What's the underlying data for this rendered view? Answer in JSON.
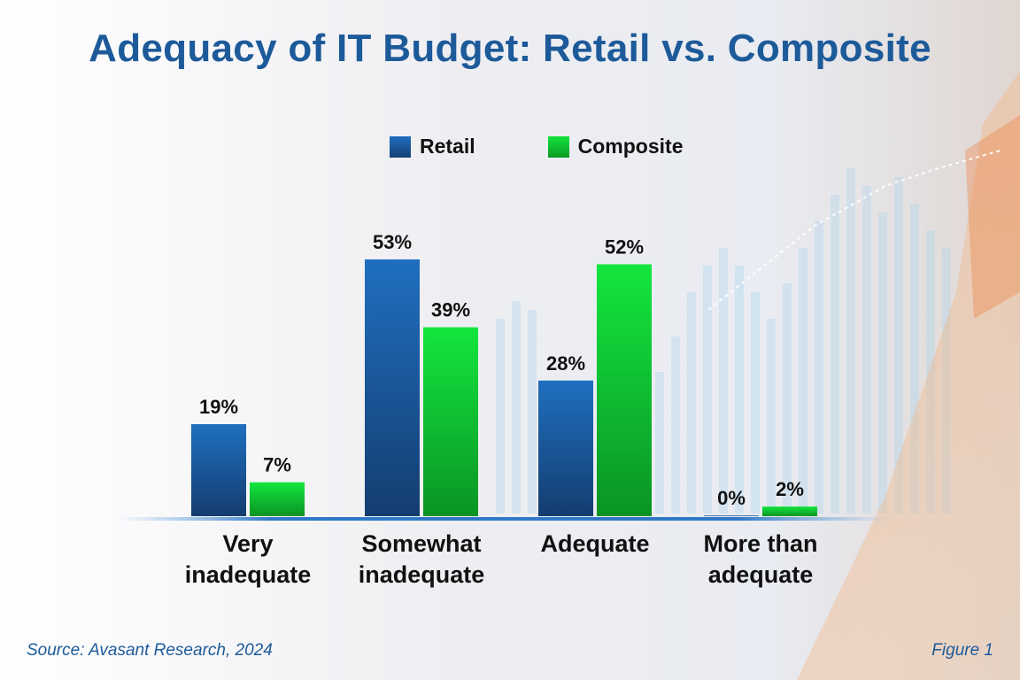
{
  "chart_data": {
    "type": "bar",
    "title": "Adequacy of IT Budget: Retail vs. Composite",
    "categories": [
      [
        "Very",
        "inadequate"
      ],
      [
        "Somewhat",
        "inadequate"
      ],
      [
        "Adequate"
      ],
      [
        "More than",
        "adequate"
      ]
    ],
    "series": [
      {
        "name": "Retail",
        "values": [
          19,
          53,
          28,
          0
        ],
        "labels": [
          "19%",
          "53%",
          "28%",
          "0%"
        ],
        "color": "#1c64ad"
      },
      {
        "name": "Composite",
        "values": [
          7,
          39,
          52,
          2
        ],
        "labels": [
          "7%",
          "39%",
          "52%",
          "2%"
        ],
        "color": "#10c832"
      }
    ],
    "ylim": [
      0,
      60
    ],
    "xlabel": "",
    "ylabel": "",
    "legend": "top-center",
    "grid": false
  },
  "footer": {
    "source": "Source: Avasant Research, 2024",
    "figure": "Figure 1"
  }
}
